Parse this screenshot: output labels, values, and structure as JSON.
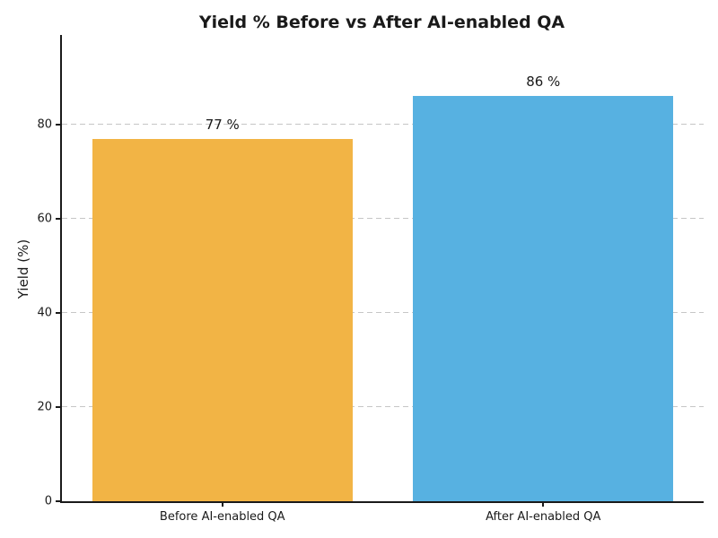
{
  "chart_data": {
    "type": "bar",
    "title": "Yield % Before vs After AI-enabled QA",
    "ylabel": "Yield (%)",
    "xlabel": "",
    "categories": [
      "Before AI-enabled QA",
      "After AI-enabled QA"
    ],
    "values": [
      77,
      86
    ],
    "value_labels": [
      "77 %",
      "86 %"
    ],
    "bar_colors": [
      "#F2B445",
      "#57B1E1"
    ],
    "yticks": [
      0,
      20,
      40,
      60,
      80
    ],
    "ylim": [
      0,
      99
    ],
    "grid": "horizontal-dashed",
    "background_color": "#ffffff"
  }
}
